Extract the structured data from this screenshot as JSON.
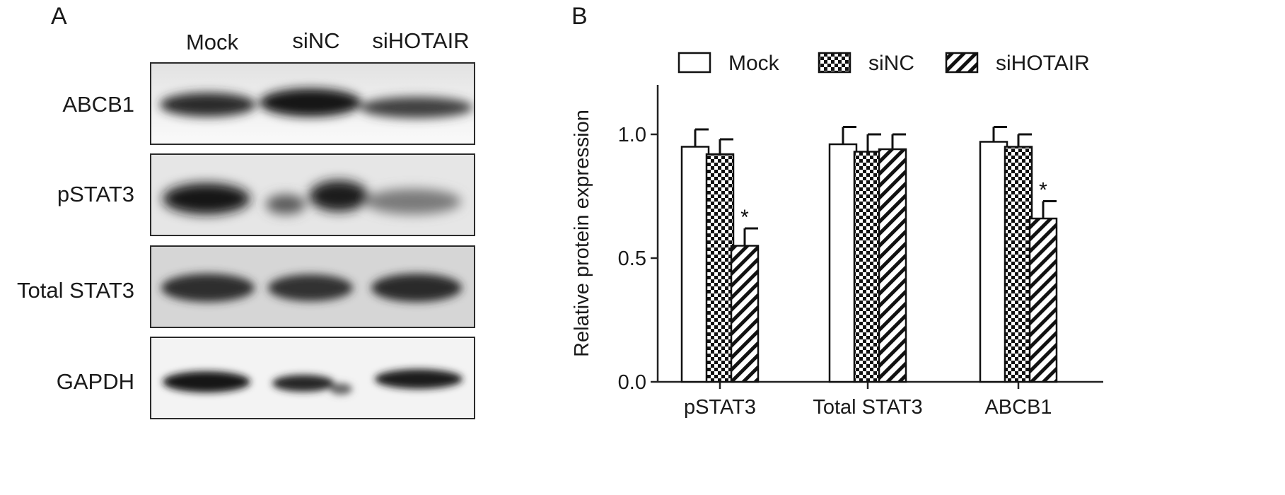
{
  "panel_a": {
    "letter": "A",
    "lanes": [
      "Mock",
      "siNC",
      "siHOTAIR"
    ],
    "rows": [
      "ABCB1",
      "pSTAT3",
      "Total STAT3",
      "GAPDH"
    ]
  },
  "panel_b": {
    "letter": "B"
  },
  "chart_data": {
    "type": "bar",
    "categories": [
      "pSTAT3",
      "Total STAT3",
      "ABCB1"
    ],
    "series": [
      {
        "name": "Mock",
        "pattern": "open",
        "values": [
          0.95,
          0.96,
          0.97
        ],
        "errors": [
          0.07,
          0.07,
          0.06
        ],
        "sig": [
          false,
          false,
          false
        ]
      },
      {
        "name": "siNC",
        "pattern": "checker",
        "values": [
          0.92,
          0.93,
          0.95
        ],
        "errors": [
          0.06,
          0.07,
          0.05
        ],
        "sig": [
          false,
          false,
          false
        ]
      },
      {
        "name": "siHOTAIR",
        "pattern": "hatched",
        "values": [
          0.55,
          0.94,
          0.66
        ],
        "errors": [
          0.07,
          0.06,
          0.07
        ],
        "sig": [
          true,
          false,
          true
        ]
      }
    ],
    "ylabel": "Relative protein expression",
    "xlabel": "",
    "ylim": [
      0,
      1.2
    ],
    "yticks": [
      "0.0",
      "0.5",
      "1.0"
    ],
    "significance_marker": "*",
    "legend_position": "top"
  }
}
